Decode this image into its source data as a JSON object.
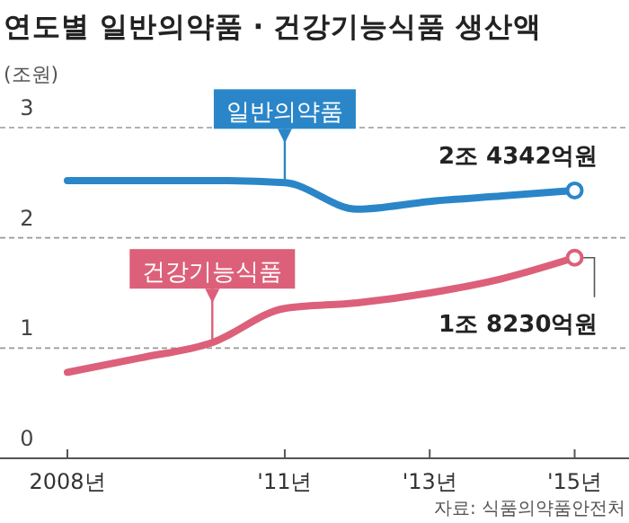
{
  "chart_data": {
    "type": "line",
    "title": "연도별 일반의약품 · 건강기능식품 생산액",
    "ylabel": "(조원)",
    "categories": [
      "2008년",
      null,
      null,
      "'11년",
      null,
      "'13년",
      null,
      "'15년"
    ],
    "ylim": [
      0,
      3
    ],
    "yticks": [
      0,
      1,
      2,
      3
    ],
    "grid": "y",
    "series": [
      {
        "name": "일반의약품",
        "color": "#2a86c8",
        "values": [
          2.52,
          2.52,
          2.52,
          2.5,
          2.26,
          2.33,
          2.38,
          2.43
        ]
      },
      {
        "name": "건강기능식품",
        "color": "#dc6079",
        "values": [
          0.78,
          0.91,
          1.05,
          1.36,
          1.41,
          1.5,
          1.63,
          1.82
        ]
      }
    ],
    "annotations": [
      {
        "text": "2조 4342억원",
        "x": "'15년",
        "y": 2.43
      },
      {
        "text": "1조 8230억원",
        "x": "'15년",
        "y": 1.82
      },
      "자료: 식품의약품안전처"
    ]
  }
}
